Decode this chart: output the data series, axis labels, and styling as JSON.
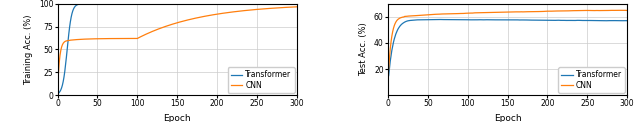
{
  "epochs": 300,
  "train_ylim": [
    0,
    100
  ],
  "train_yticks": [
    0,
    25,
    50,
    75,
    100
  ],
  "test_ylim": [
    0,
    70
  ],
  "test_yticks": [
    20,
    40,
    60
  ],
  "xlim": [
    0,
    300
  ],
  "xticks": [
    0,
    50,
    100,
    150,
    200,
    250,
    300
  ],
  "xlabel": "Epoch",
  "train_ylabel": "Training Acc. (%)",
  "test_ylabel": "Test Acc. (%)",
  "transformer_color": "#1f77b4",
  "cnn_color": "#ff7f0e",
  "legend_labels": [
    "Transformer",
    "CNN"
  ],
  "background_color": "#ffffff",
  "grid_color": "#cccccc",
  "linewidth": 0.9
}
